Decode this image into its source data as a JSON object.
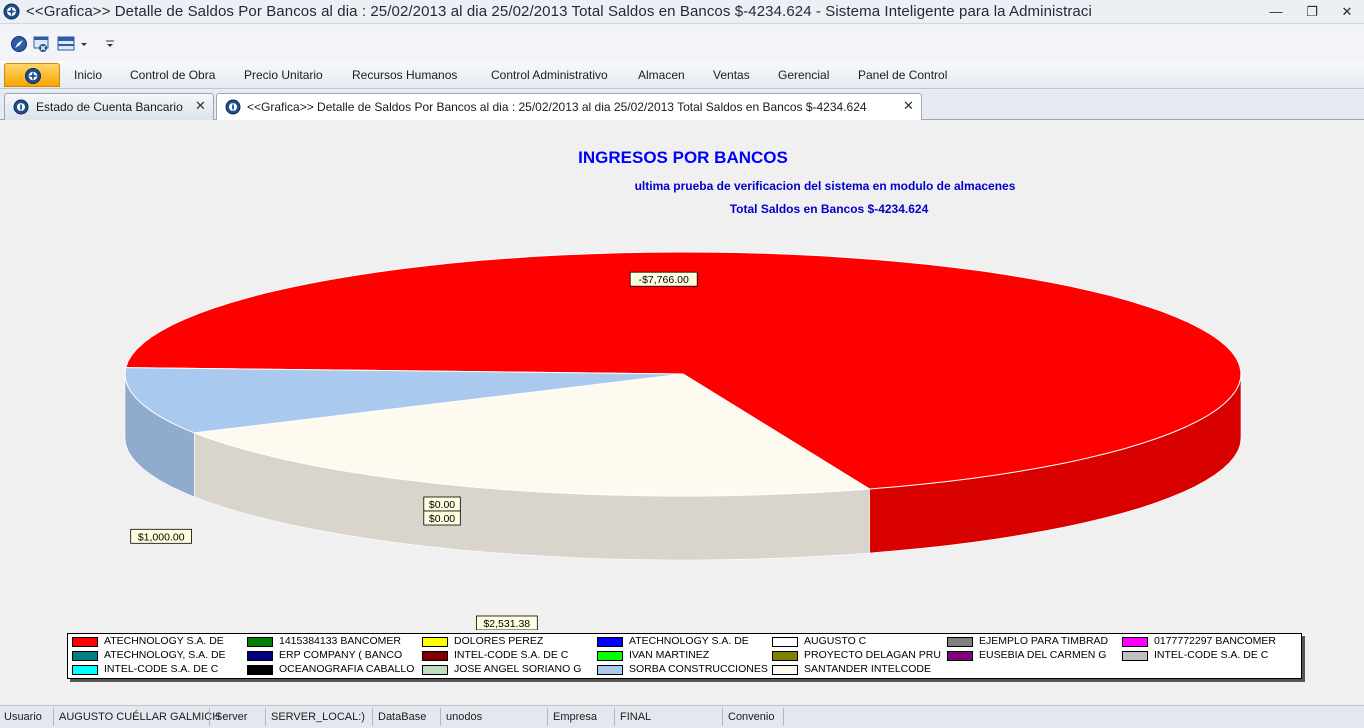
{
  "window": {
    "title": "<<Grafica>> Detalle de Saldos Por Bancos al dia : 25/02/2013 al dia 25/02/2013   Total Saldos en Bancos  $-4234.624  - Sistema Inteligente para la Administraci",
    "minimize_glyph": "—",
    "restore_glyph": "❐",
    "close_glyph": "✕"
  },
  "ribbon": {
    "items": [
      {
        "label": "Inicio"
      },
      {
        "label": "Control de Obra"
      },
      {
        "label": "Precio Unitario"
      },
      {
        "label": "Recursos Humanos"
      },
      {
        "label": "Control Administrativo"
      },
      {
        "label": "Almacen"
      },
      {
        "label": "Ventas"
      },
      {
        "label": "Gerencial"
      },
      {
        "label": "Panel de Control"
      }
    ]
  },
  "tabs": [
    {
      "label": "Estado de Cuenta Bancario",
      "close": "✕"
    },
    {
      "label": "<<Grafica>> Detalle de Saldos Por Bancos al dia : 25/02/2013 al dia 25/02/2013  Total Saldos en Bancos  $-4234.624",
      "close": "✕"
    }
  ],
  "chart_data": {
    "type": "pie",
    "style": "3d-exploded",
    "title": "INGRESOS POR BANCOS",
    "subtitle": "ultima prueba de verificacion del sistema en modulo de almacenes",
    "subtitle2": "Total Saldos en Bancos  $-4234.624",
    "slices": [
      {
        "label": "-$7,766.00",
        "value": 7766.0,
        "color": "#ff0000"
      },
      {
        "label": "$2,531.38",
        "value": 2531.38,
        "color": "#fffaf0"
      },
      {
        "label": "$1,000.00",
        "value": 1000.0,
        "color": "#a9c9ef"
      },
      {
        "label": "$0.00",
        "value": 0.0,
        "color": "#ffffff"
      },
      {
        "label": "$0.00",
        "value": 0.0,
        "color": "#ffffff"
      }
    ],
    "legend": [
      {
        "name": "ATECHNOLOGY S.A. DE",
        "color": "#ff0000"
      },
      {
        "name": "1415384133 BANCOMER",
        "color": "#008000"
      },
      {
        "name": "DOLORES PEREZ",
        "color": "#ffff00"
      },
      {
        "name": "ATECHNOLOGY S.A. DE",
        "color": "#0000ff"
      },
      {
        "name": "AUGUSTO C",
        "color": "#ffffff"
      },
      {
        "name": "EJEMPLO PARA TIMBRAD",
        "color": "#808080"
      },
      {
        "name": "0177772297 BANCOMER",
        "color": "#ff00ff"
      },
      {
        "name": "ATECHNOLOGY, S.A. DE",
        "color": "#008080"
      },
      {
        "name": "ERP COMPANY ( BANCO",
        "color": "#000080"
      },
      {
        "name": "INTEL-CODE S.A. DE C",
        "color": "#800000"
      },
      {
        "name": "IVAN MARTINEZ",
        "color": "#00ff00"
      },
      {
        "name": "PROYECTO DELAGAN PRU",
        "color": "#808000"
      },
      {
        "name": "EUSEBIA DEL CARMEN G",
        "color": "#800080"
      },
      {
        "name": "INTEL-CODE S.A. DE C",
        "color": "#c0c0c0"
      },
      {
        "name": "INTEL-CODE S.A. DE C",
        "color": "#00ffff"
      },
      {
        "name": "OCEANOGRAFIA CABALLO",
        "color": "#000000"
      },
      {
        "name": "JOSE ANGEL SORIANO G",
        "color": "#c0dcc0"
      },
      {
        "name": "SORBA CONSTRUCCIONES",
        "color": "#a9c9ef"
      },
      {
        "name": "SANTANDER INTELCODE",
        "color": "#fffaf0"
      }
    ]
  },
  "statusbar": {
    "cells": [
      {
        "label": "Usuario"
      },
      {
        "label": "AUGUSTO CUÉLLAR GALMICH"
      },
      {
        "label": "Server"
      },
      {
        "label": "SERVER_LOCAL:)"
      },
      {
        "label": "DataBase"
      },
      {
        "label": "unodos"
      },
      {
        "label": "Empresa"
      },
      {
        "label": "FINAL"
      },
      {
        "label": "Convenio"
      }
    ]
  }
}
